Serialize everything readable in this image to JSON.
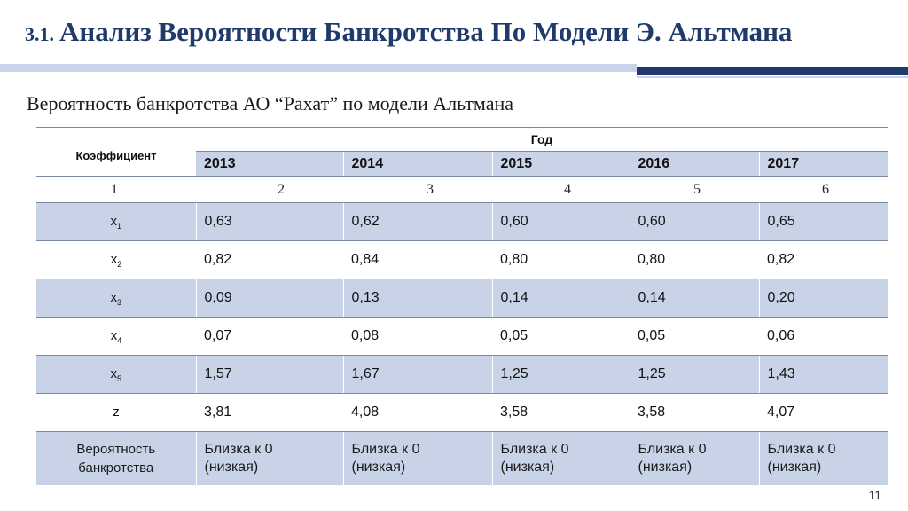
{
  "title": {
    "number": "3.1.",
    "text": "Анализ Вероятности Банкротства По Модели Э. Альтмана"
  },
  "subtitle": "Вероятность банкротства АО “Рахат” по модели Альтмана",
  "table": {
    "coef_header": "Коэффициент",
    "year_header": "Год",
    "years": [
      "2013",
      "2014",
      "2015",
      "2016",
      "2017"
    ],
    "col_numbers": [
      "1",
      "2",
      "3",
      "4",
      "5",
      "6"
    ],
    "rows": [
      {
        "base": "x",
        "sub": "1",
        "values": [
          "0,63",
          "0,62",
          "0,60",
          "0,60",
          "0,65"
        ]
      },
      {
        "base": "x",
        "sub": "2",
        "values": [
          "0,82",
          "0,84",
          "0,80",
          "0,80",
          "0,82"
        ]
      },
      {
        "base": "x",
        "sub": "3",
        "values": [
          "0,09",
          "0,13",
          "0,14",
          "0,14",
          "0,20"
        ]
      },
      {
        "base": "x",
        "sub": "4",
        "values": [
          "0,07",
          "0,08",
          "0,05",
          "0,05",
          "0,06"
        ]
      },
      {
        "base": "x",
        "sub": "5",
        "values": [
          "1,57",
          "1,67",
          "1,25",
          "1,25",
          "1,43"
        ]
      },
      {
        "base": "z",
        "sub": "",
        "values": [
          "3,81",
          "4,08",
          "3,58",
          "3,58",
          "4,07"
        ]
      }
    ],
    "prob_label": [
      "Вероятность",
      "банкротства"
    ],
    "prob_values": [
      [
        "Близка к 0",
        "(низкая)"
      ],
      [
        "Близка к 0",
        "(низкая)"
      ],
      [
        "Близка к 0",
        "(низкая)"
      ],
      [
        "Близка к 0",
        "(низкая)"
      ],
      [
        "Близка к 0",
        "(низкая)"
      ]
    ]
  },
  "page_number": "11"
}
